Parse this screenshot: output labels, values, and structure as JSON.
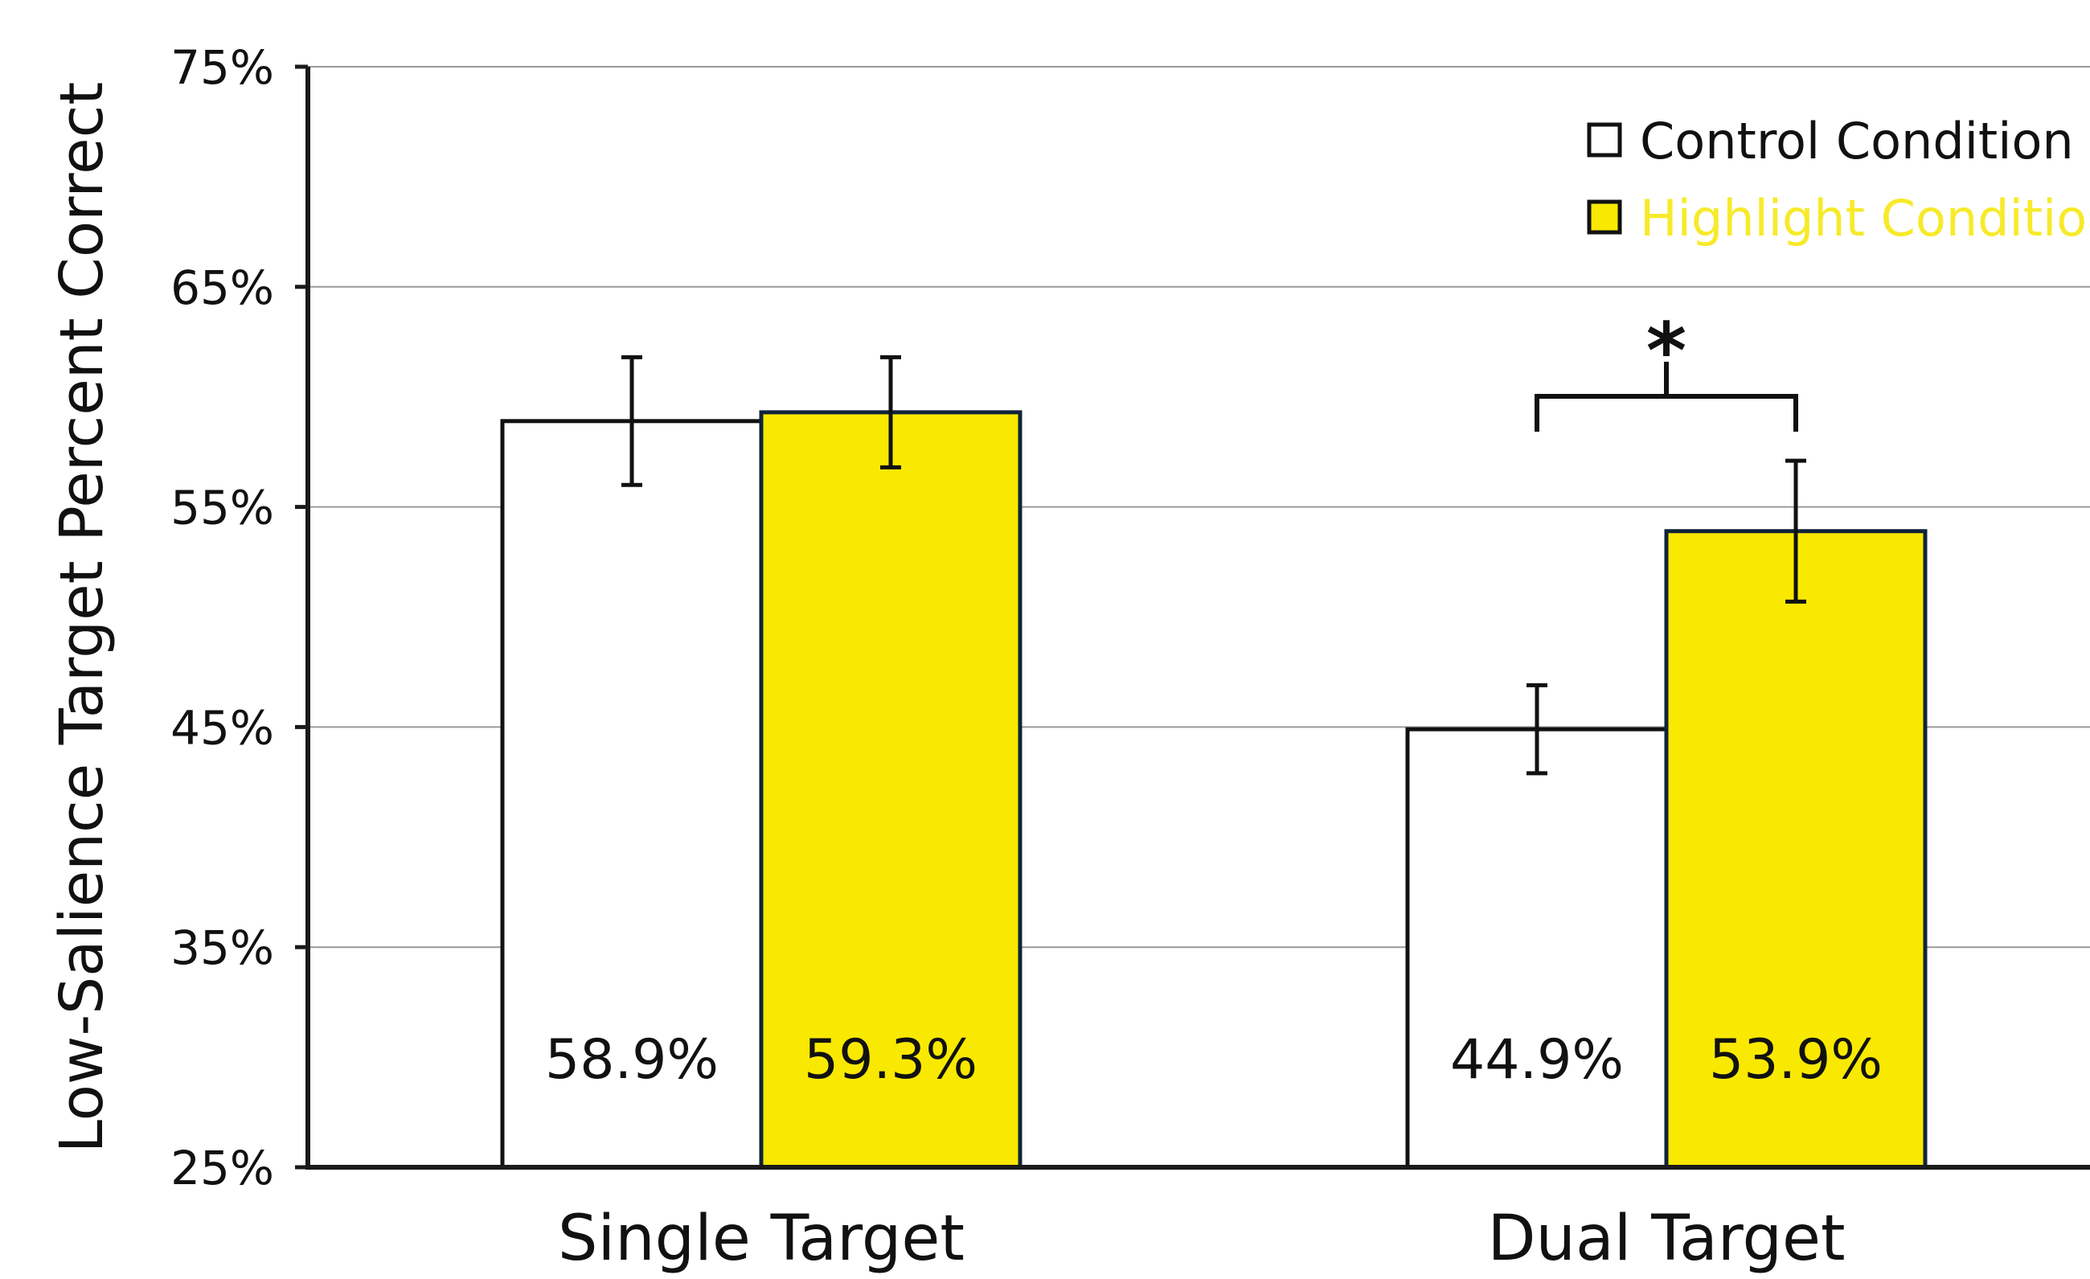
{
  "chart_data": {
    "type": "bar",
    "ylabel": "Low-Salience Target Percent Correct",
    "xlabel": "",
    "ylim": [
      25,
      75
    ],
    "y_ticks": [
      25,
      35,
      45,
      55,
      65,
      75
    ],
    "y_tick_labels": [
      "25%",
      "35%",
      "45%",
      "55%",
      "65%",
      "75%"
    ],
    "categories": [
      "Single Target",
      "Dual Target"
    ],
    "series": [
      {
        "name": "Control Condition",
        "color": "#ffffff",
        "values": [
          58.9,
          44.9
        ],
        "error": [
          2.9,
          2.0
        ],
        "data_labels": [
          "58.9%",
          "44.9%"
        ]
      },
      {
        "name": "Highlight Condition",
        "color": "#f9e900",
        "values": [
          59.3,
          53.9
        ],
        "error": [
          2.5,
          3.2
        ],
        "data_labels": [
          "59.3%",
          "53.9%"
        ]
      }
    ],
    "grid": true,
    "legend_position": "top-right",
    "annotations": [
      {
        "text": "*",
        "category": "Dual Target",
        "between": [
          "Control Condition",
          "Highlight Condition"
        ]
      }
    ],
    "colors": {
      "highlight": "#f9e900",
      "highlight_text": "#f7ea2a",
      "axis": "#1a1a1a",
      "grid": "#9a9a9a"
    }
  }
}
